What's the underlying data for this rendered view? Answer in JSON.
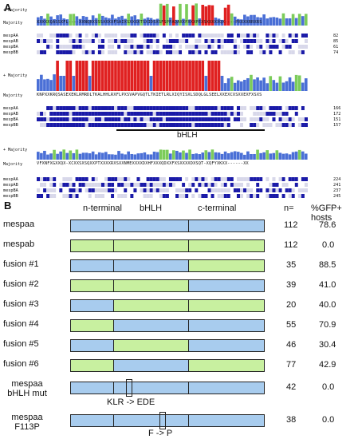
{
  "panel_a": {
    "label": "A",
    "track_label": "+ Majority",
    "consensus_label": "Majority",
    "blocks": [
      {
        "consensus": "XXXXXQASSXFL----XXNQXXSSSXXXXFSAIXSXXXXTSXIDSXSFSPPAQAXXPXXXPEXSXXXXXQX----PXXXXRRXRS",
        "rows": [
          {
            "name": "mespAA",
            "end": "82"
          },
          {
            "name": "mespAB",
            "end": "85"
          },
          {
            "name": "mespBA",
            "end": "61"
          },
          {
            "name": "mespBB",
            "end": "74"
          }
        ]
      },
      {
        "consensus": "KNPXXKRQSASEXEKLRMRDLTKALHHLRXFLPXSVAPVGQTLTKIETLRLXIQYISXLSDQLGLSEELXXEXCXSXXEXFXSXS",
        "bhlh_label": "bHLH",
        "rows": [
          {
            "name": "mespAA",
            "end": "166"
          },
          {
            "name": "mespAB",
            "end": "172"
          },
          {
            "name": "mespBA",
            "end": "151"
          },
          {
            "name": "mespBB",
            "end": "157"
          }
        ]
      },
      {
        "consensus": "VFXNFXGXXQX-XCXXSXSQXXPTXXXXRXSXXNMEXXXXDXHFXXXQDXXFXSXXXXDXSQT-XQFYXKXX------XX",
        "rows": [
          {
            "name": "mespAA",
            "end": "224"
          },
          {
            "name": "mespAB",
            "end": "241"
          },
          {
            "name": "mespBA",
            "end": "237"
          },
          {
            "name": "mespBB",
            "end": "245"
          }
        ]
      }
    ]
  },
  "panel_b": {
    "label": "B",
    "headers": {
      "n_terminal": "n-terminal",
      "bhlh": "bHLH",
      "c_terminal": "c-terminal",
      "n": "n=",
      "gfp": "%GFP+ hosts"
    },
    "colors": {
      "blue": "#a8ccee",
      "green": "#c8f0a0"
    },
    "rows": [
      {
        "name": "mespaa",
        "segments": [
          "blue",
          "blue",
          "blue"
        ],
        "n": "112",
        "gfp": "78.6"
      },
      {
        "name": "mespab",
        "segments": [
          "green",
          "green",
          "green"
        ],
        "n": "112",
        "gfp": "0.0"
      },
      {
        "name": "fusion #1",
        "segments": [
          "blue",
          "blue",
          "green"
        ],
        "n": "35",
        "gfp": "88.5"
      },
      {
        "name": "fusion #2",
        "segments": [
          "green",
          "green",
          "blue"
        ],
        "n": "39",
        "gfp": "41.0"
      },
      {
        "name": "fusion #3",
        "segments": [
          "blue",
          "green",
          "green"
        ],
        "n": "20",
        "gfp": "40.0"
      },
      {
        "name": "fusion #4",
        "segments": [
          "green",
          "blue",
          "blue"
        ],
        "n": "55",
        "gfp": "70.9"
      },
      {
        "name": "fusion #5",
        "segments": [
          "blue",
          "green",
          "blue"
        ],
        "n": "46",
        "gfp": "30.4"
      },
      {
        "name": "fusion #6",
        "segments": [
          "green",
          "blue",
          "green"
        ],
        "n": "77",
        "gfp": "42.9"
      },
      {
        "name": "mespaa bHLH mut",
        "segments": [
          "blue",
          "blue",
          "blue"
        ],
        "n": "42",
        "gfp": "0.0",
        "mutation": "KLR -> EDE"
      },
      {
        "name": "mespaa F113P",
        "segments": [
          "blue",
          "blue",
          "blue"
        ],
        "n": "38",
        "gfp": "0.0",
        "mutation": "F -> P"
      }
    ]
  }
}
